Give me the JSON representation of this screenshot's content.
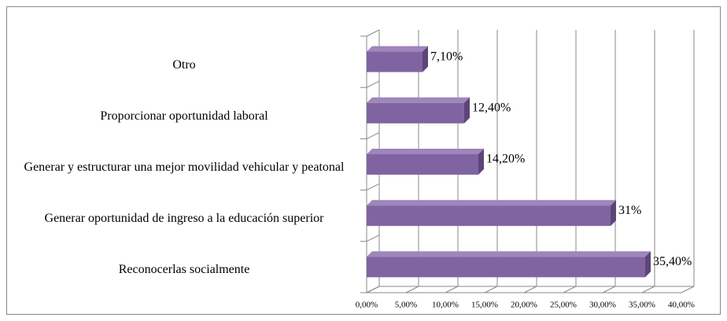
{
  "chart_data": {
    "type": "bar",
    "orientation": "horizontal",
    "categories": [
      "Reconocerlas socialmente",
      "Generar oportunidad de ingreso a la educación superior",
      "Generar y estructurar una mejor movilidad vehicular y peatonal",
      "Proporcionar oportunidad laboral",
      "Otro"
    ],
    "values": [
      35.4,
      31,
      14.2,
      12.4,
      7.1
    ],
    "value_labels": [
      "35,40%",
      "31%",
      "14,20%",
      "12,40%",
      "7,10%"
    ],
    "color": "#8064a2",
    "xlim": [
      0,
      40
    ],
    "xticks": [
      {
        "value": 0,
        "label": "0,00%"
      },
      {
        "value": 5,
        "label": "5,00%"
      },
      {
        "value": 10,
        "label": "10,00%"
      },
      {
        "value": 15,
        "label": "15,00%"
      },
      {
        "value": 20,
        "label": "20,00%"
      },
      {
        "value": 25,
        "label": "25,00%"
      },
      {
        "value": 30,
        "label": "30,00%"
      },
      {
        "value": 35,
        "label": "35,00%"
      },
      {
        "value": 40,
        "label": "40,00%"
      }
    ],
    "grid": true
  }
}
